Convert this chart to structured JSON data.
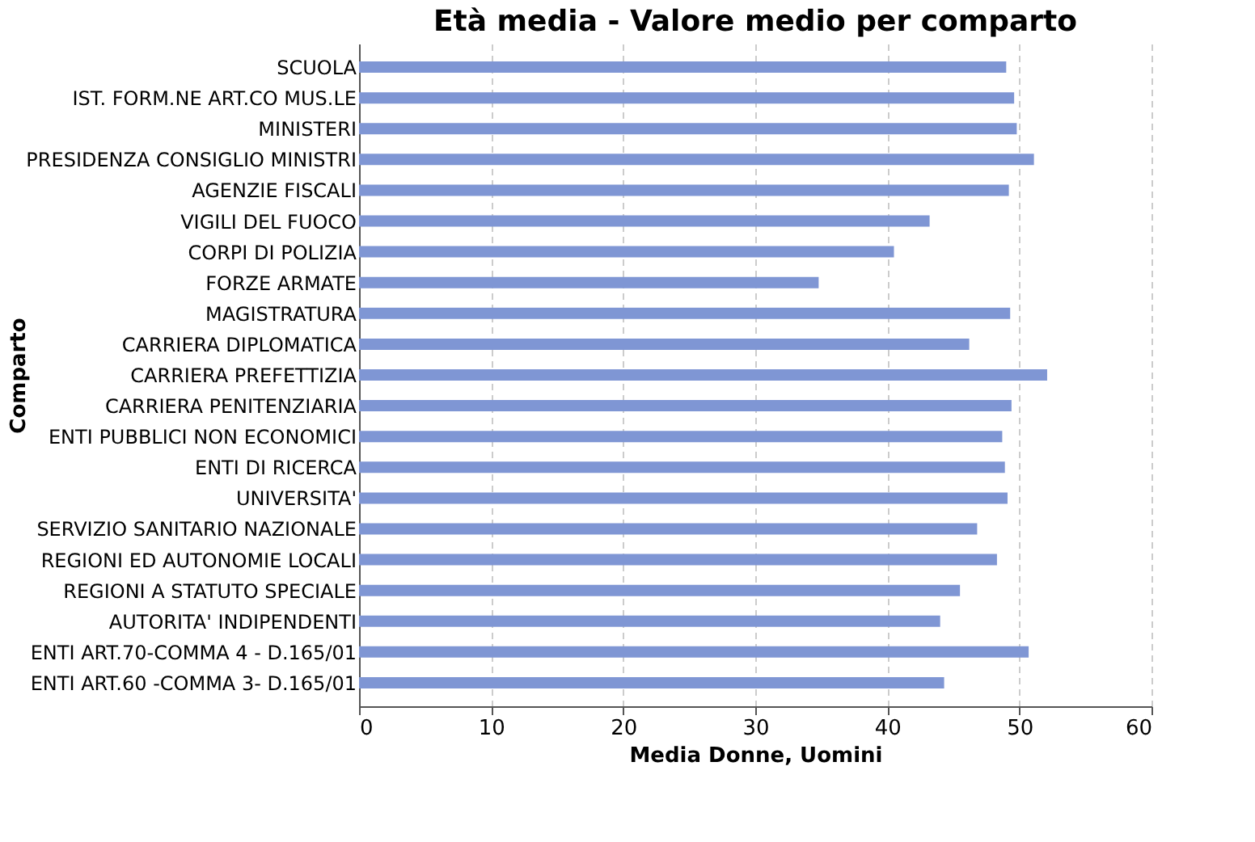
{
  "chart_data": {
    "type": "bar",
    "orientation": "horizontal",
    "title": "Età media - Valore medio per comparto",
    "xlabel": "Media Donne, Uomini",
    "ylabel": "Comparto",
    "categories": [
      "SCUOLA",
      "IST. FORM.NE ART.CO MUS.LE",
      "MINISTERI",
      "PRESIDENZA CONSIGLIO MINISTRI",
      "AGENZIE FISCALI",
      "VIGILI DEL FUOCO",
      "CORPI DI POLIZIA",
      "FORZE ARMATE",
      "MAGISTRATURA",
      "CARRIERA DIPLOMATICA",
      "CARRIERA PREFETTIZIA",
      "CARRIERA PENITENZIARIA",
      "ENTI PUBBLICI NON ECONOMICI",
      "ENTI DI RICERCA",
      "UNIVERSITA'",
      "SERVIZIO SANITARIO NAZIONALE",
      "REGIONI ED AUTONOMIE LOCALI",
      "REGIONI A STATUTO SPECIALE",
      "AUTORITA' INDIPENDENTI",
      "ENTI ART.70-COMMA 4 - D.165/01",
      "ENTI ART.60 -COMMA 3- D.165/01"
    ],
    "values": [
      49.0,
      49.6,
      49.8,
      51.1,
      49.2,
      43.2,
      40.5,
      34.8,
      49.3,
      46.2,
      52.1,
      49.4,
      48.7,
      48.9,
      49.1,
      46.8,
      48.3,
      45.5,
      44.0,
      50.7,
      44.3
    ],
    "color": "#7f96d4",
    "xlim": [
      0,
      60
    ],
    "xticks": [
      0,
      10,
      20,
      30,
      40,
      50,
      60
    ],
    "grid": "x"
  }
}
